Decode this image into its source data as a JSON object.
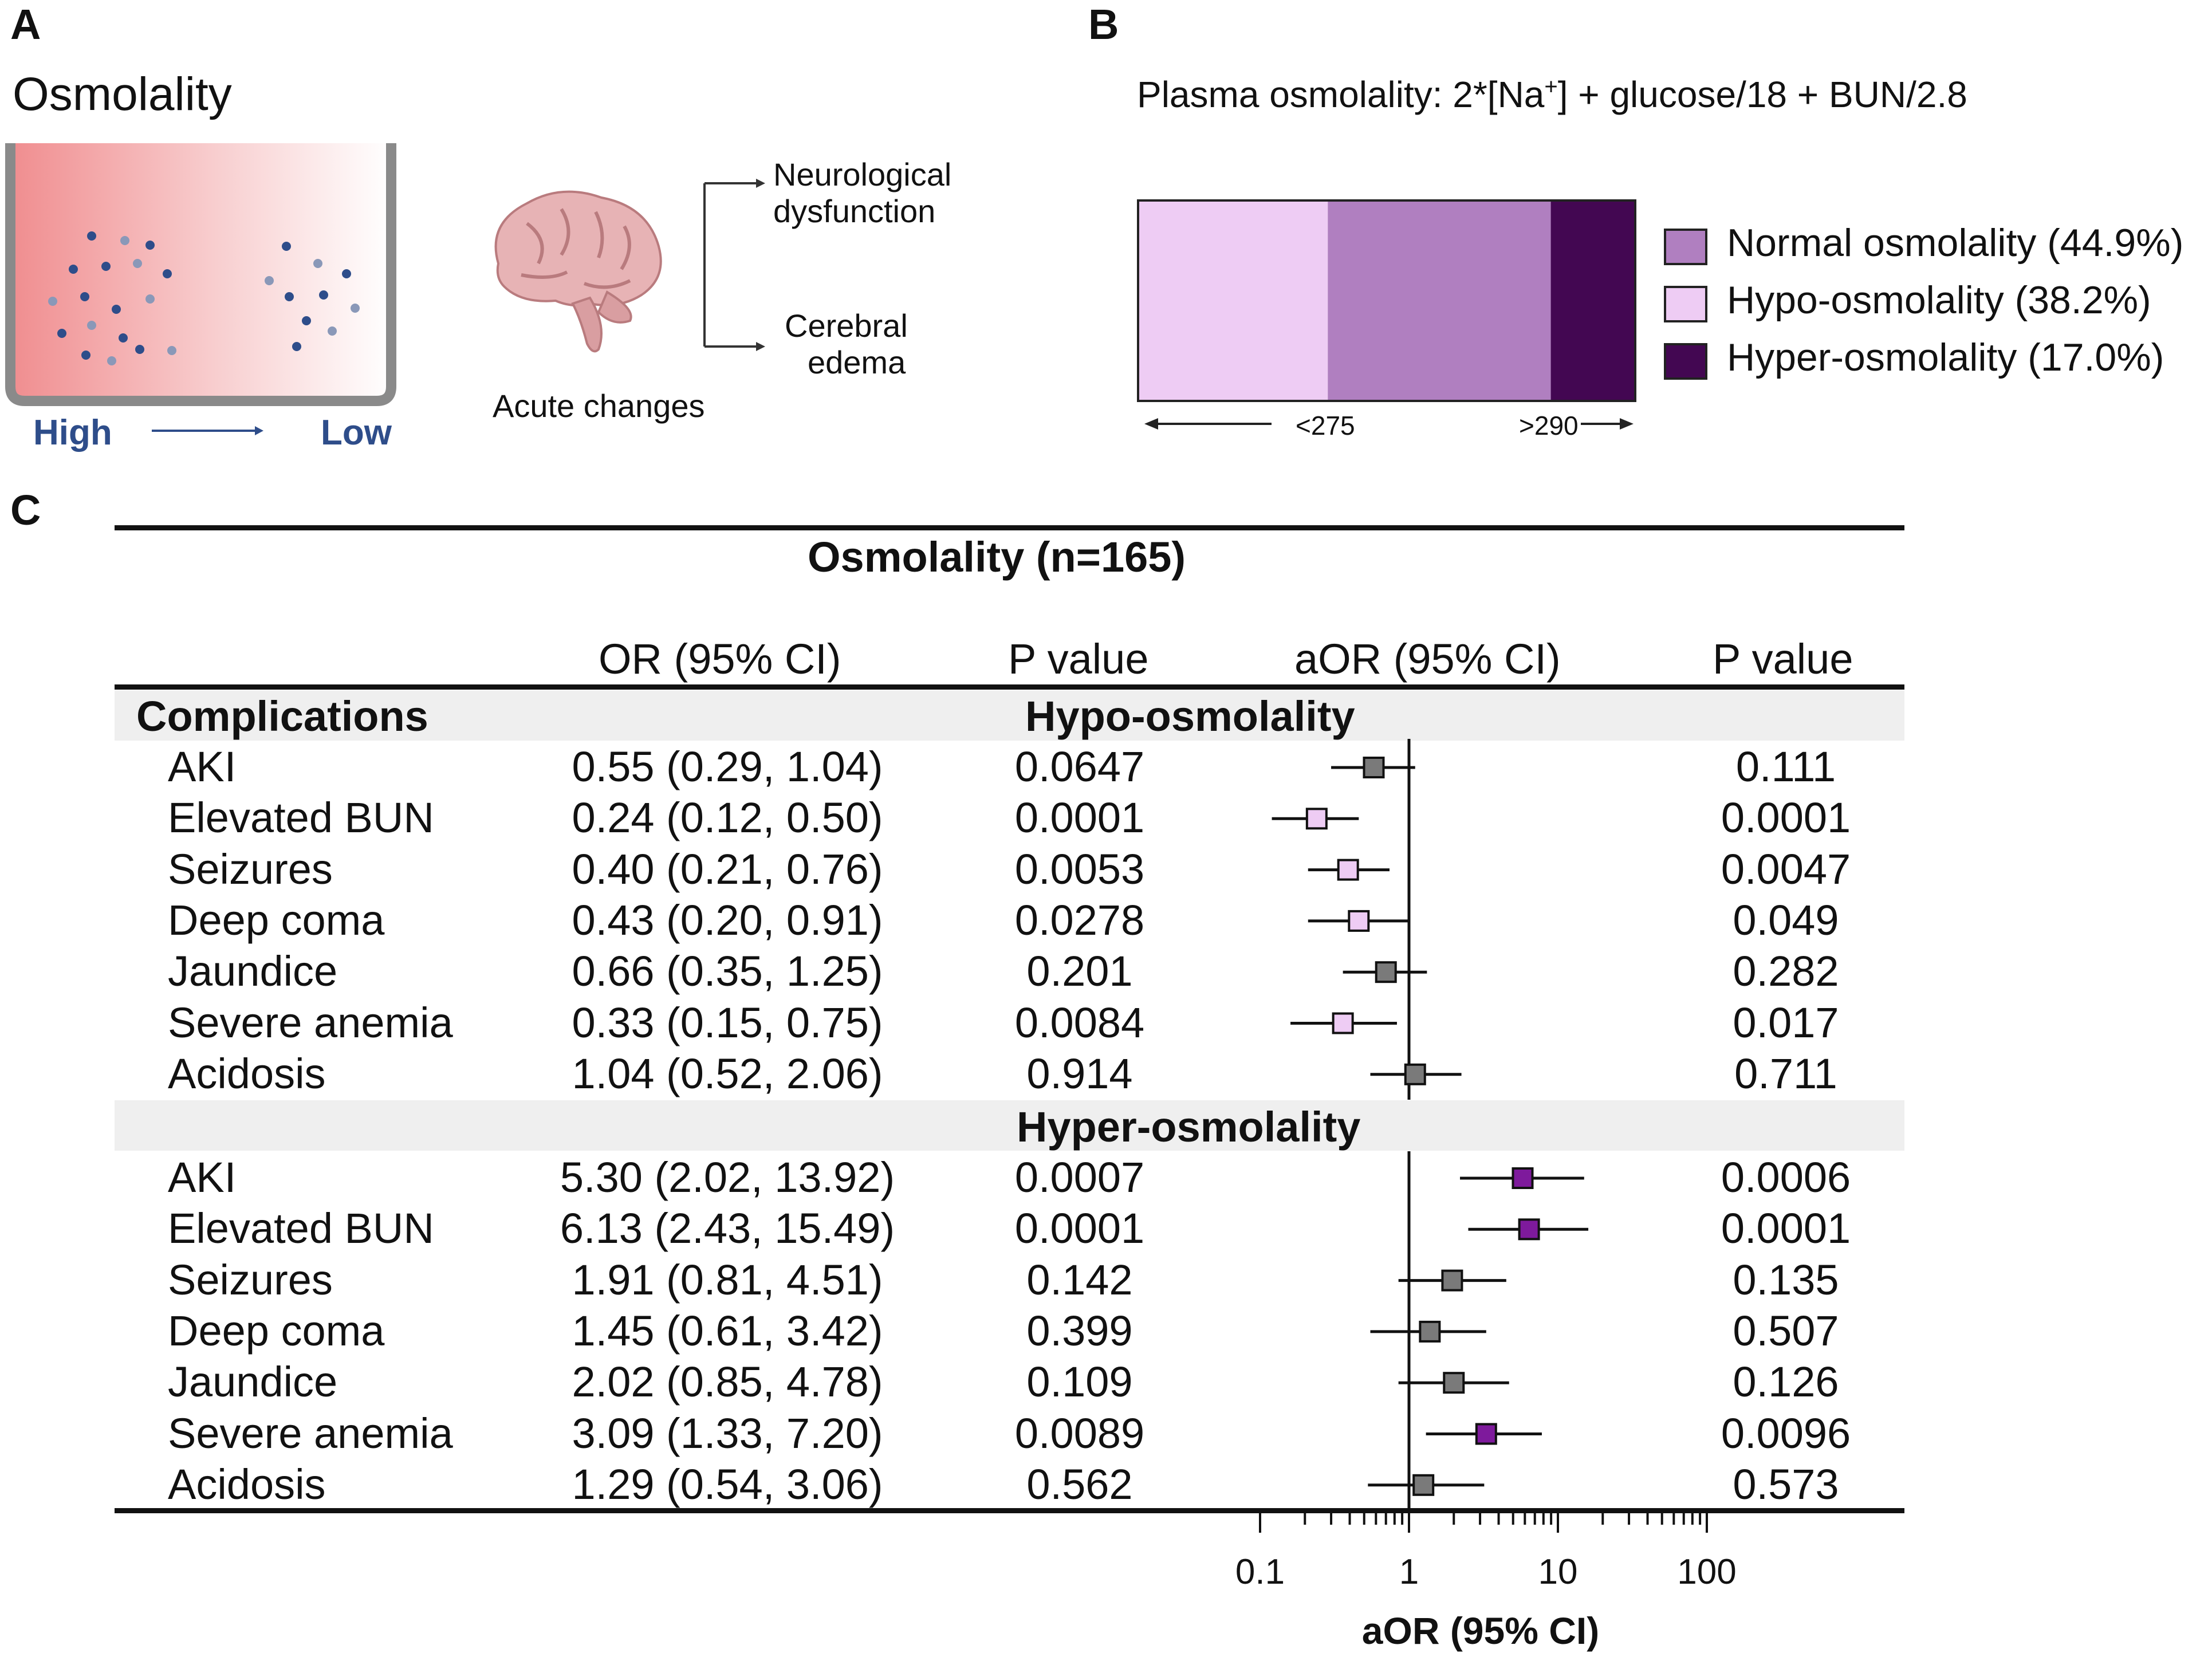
{
  "panel_a": {
    "letter": "A",
    "title": "Osmolality",
    "high_label": "High",
    "low_label": "Low",
    "acute_label": "Acute changes",
    "outcome1_line1": "Neurological",
    "outcome1_line2": "dysfunction",
    "outcome2_line1": "Cerebral",
    "outcome2_line2": "edema"
  },
  "panel_b": {
    "letter": "B",
    "formula_pre": "Plasma osmolality: 2*[Na",
    "formula_sup": "+",
    "formula_post": "] + glucose/18 + BUN/2.8",
    "left_label": "<275",
    "right_label": ">290",
    "segments": [
      {
        "name": "Hypo-osmolality",
        "value": 38.2,
        "color": "#eeccf4"
      },
      {
        "name": "Normal osmolality",
        "value": 44.9,
        "color": "#b07fc0"
      },
      {
        "name": "Hyper-osmolality",
        "value": 17.0,
        "color": "#430752"
      }
    ],
    "legend": [
      {
        "label": "Normal osmolality (44.9%)",
        "color": "#b07fc0"
      },
      {
        "label": "Hypo-osmolality (38.2%)",
        "color": "#eeccf4"
      },
      {
        "label": "Hyper-osmolality (17.0%)",
        "color": "#430752"
      }
    ]
  },
  "panel_c": {
    "letter": "C",
    "title": "Osmolality (n=165)",
    "headers": {
      "or": "OR (95% CI)",
      "p1": "P value",
      "aor": "aOR (95% CI)",
      "p2": "P value"
    },
    "row_header": "Complications",
    "group1_title": "Hypo-osmolality",
    "group2_title": "Hyper-osmolality"
  },
  "chart_data": {
    "type": "forest",
    "title": "Osmolality (n=165)",
    "xlabel": "aOR (95% CI)",
    "xscale": "log",
    "xlim": [
      0.1,
      100
    ],
    "reference_line": 1,
    "tick_labels": [
      "0.1",
      "1",
      "10",
      "100"
    ],
    "colors": {
      "nonsig": "#7a7a7a",
      "hypo_sig": "#eeccf4",
      "hyper_sig": "#7e1a9c"
    },
    "groups": [
      {
        "name": "Hypo-osmolality",
        "rows": [
          {
            "label": "AKI",
            "or_text": "0.55 (0.29, 1.04)",
            "p1": "0.0647",
            "aor": 0.58,
            "lo": 0.3,
            "hi": 1.1,
            "p2": "0.111",
            "significant": false
          },
          {
            "label": "Elevated BUN",
            "or_text": "0.24 (0.12, 0.50)",
            "p1": "0.0001",
            "aor": 0.24,
            "lo": 0.12,
            "hi": 0.46,
            "p2": "0.0001",
            "significant": true
          },
          {
            "label": "Seizures",
            "or_text": "0.40 (0.21, 0.76)",
            "p1": "0.0053",
            "aor": 0.39,
            "lo": 0.21,
            "hi": 0.74,
            "p2": "0.0047",
            "significant": true
          },
          {
            "label": "Deep coma",
            "or_text": "0.43 (0.20, 0.91)",
            "p1": "0.0278",
            "aor": 0.46,
            "lo": 0.21,
            "hi": 0.99,
            "p2": "0.049",
            "significant": true
          },
          {
            "label": "Jaundice",
            "or_text": "0.66 (0.35, 1.25)",
            "p1": "0.201",
            "aor": 0.7,
            "lo": 0.36,
            "hi": 1.32,
            "p2": "0.282",
            "significant": false
          },
          {
            "label": "Severe anemia",
            "or_text": "0.33 (0.15, 0.75)",
            "p1": "0.0084",
            "aor": 0.36,
            "lo": 0.16,
            "hi": 0.83,
            "p2": "0.017",
            "significant": true
          },
          {
            "label": "Acidosis",
            "or_text": "1.04 (0.52, 2.06)",
            "p1": "0.914",
            "aor": 1.1,
            "lo": 0.55,
            "hi": 2.25,
            "p2": "0.711",
            "significant": false
          }
        ]
      },
      {
        "name": "Hyper-osmolality",
        "rows": [
          {
            "label": "AKI",
            "or_text": "5.30 (2.02, 13.92)",
            "p1": "0.0007",
            "aor": 5.8,
            "lo": 2.2,
            "hi": 15.0,
            "p2": "0.0006",
            "significant": true
          },
          {
            "label": "Elevated BUN",
            "or_text": "6.13 (2.43, 15.49)",
            "p1": "0.0001",
            "aor": 6.4,
            "lo": 2.5,
            "hi": 16.0,
            "p2": "0.0001",
            "significant": true
          },
          {
            "label": "Seizures",
            "or_text": "1.91 (0.81, 4.51)",
            "p1": "0.142",
            "aor": 1.95,
            "lo": 0.85,
            "hi": 4.5,
            "p2": "0.135",
            "significant": false
          },
          {
            "label": "Deep coma",
            "or_text": "1.45 (0.61, 3.42)",
            "p1": "0.399",
            "aor": 1.38,
            "lo": 0.55,
            "hi": 3.3,
            "p2": "0.507",
            "significant": false
          },
          {
            "label": "Jaundice",
            "or_text": "2.02 (0.85, 4.78)",
            "p1": "0.109",
            "aor": 2.0,
            "lo": 0.85,
            "hi": 4.7,
            "p2": "0.126",
            "significant": false
          },
          {
            "label": "Severe anemia",
            "or_text": "3.09 (1.33, 7.20)",
            "p1": "0.0089",
            "aor": 3.3,
            "lo": 1.3,
            "hi": 7.8,
            "p2": "0.0096",
            "significant": true
          },
          {
            "label": "Acidosis",
            "or_text": "1.29 (0.54, 3.06)",
            "p1": "0.562",
            "aor": 1.25,
            "lo": 0.53,
            "hi": 3.2,
            "p2": "0.573",
            "significant": false
          }
        ]
      }
    ]
  }
}
